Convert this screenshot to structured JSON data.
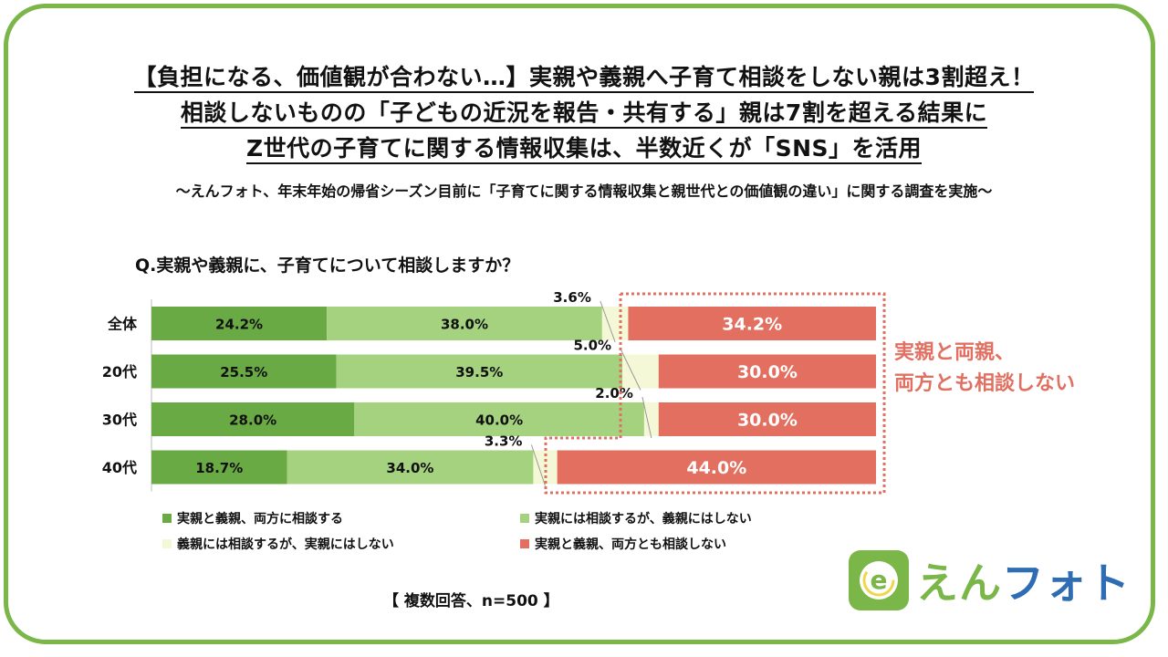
{
  "headline": {
    "line1": "【負担になる、価値観が合わない…】実親や義親へ子育て相談をしない親は3割超え！",
    "line2": "相談しないものの「子どもの近況を報告・共有する」親は7割を超える結果に",
    "line3": "Z世代の子育てに関する情報収集は、半数近くが「SNS」を活用"
  },
  "subtitle": "～えんフォト、年末年始の帰省シーズン目前に「子育てに関する情報収集と親世代との価値観の違い」に関する調査を実施～",
  "question": "Q.実親や義親に、子育てについて相談しますか？",
  "callout": {
    "line1": "実親と両親、",
    "line2": "両方とも相談しない"
  },
  "note": "【 複数回答、n=500 】",
  "brand": {
    "part1": "えん",
    "part2": "フォト",
    "mark_letter": "e"
  },
  "colors": {
    "frame": "#7ab648",
    "series1": "#6aaa45",
    "series2": "#a5d27f",
    "series3": "#f4f8d6",
    "series4": "#e26f5f",
    "callout": "#e07062",
    "brand_blue": "#2e6db3"
  },
  "chart_data": {
    "type": "bar",
    "orientation": "horizontal",
    "stacked": true,
    "title": "Q.実親や義親に、子育てについて相談しますか？",
    "categories": [
      "全体",
      "20代",
      "30代",
      "40代"
    ],
    "series": [
      {
        "name": "実親と義親、両方に相談する",
        "values": [
          24.2,
          25.5,
          28.0,
          18.7
        ],
        "labels": [
          "24.2%",
          "25.5%",
          "28.0%",
          "18.7%"
        ]
      },
      {
        "name": "実親には相談するが、義親にはしない",
        "values": [
          38.0,
          39.5,
          40.0,
          34.0
        ],
        "labels": [
          "38.0%",
          "39.5%",
          "40.0%",
          "34.0%"
        ]
      },
      {
        "name": "義親には相談するが、実親にはしない",
        "values": [
          3.6,
          5.0,
          2.0,
          3.3
        ],
        "labels": [
          "3.6%",
          "5.0%",
          "2.0%",
          "3.3%"
        ]
      },
      {
        "name": "実親と義親、両方とも相談しない",
        "values": [
          34.2,
          30.0,
          30.0,
          44.0
        ],
        "labels": [
          "34.2%",
          "30.0%",
          "30.0%",
          "44.0%"
        ]
      }
    ],
    "xlim": [
      0,
      100
    ],
    "legend": "bottom"
  }
}
